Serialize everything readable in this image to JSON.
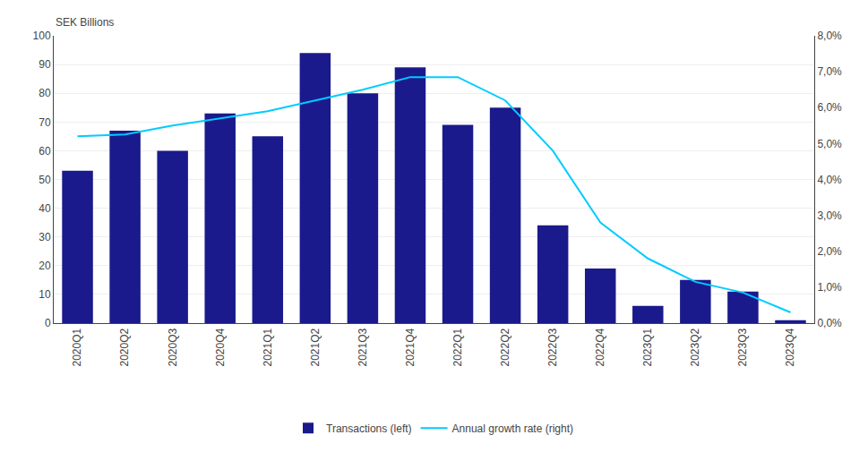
{
  "chart_data": {
    "type": "bar_line",
    "ylabel": "SEK Billions",
    "categories": [
      "2020Q1",
      "2020Q2",
      "2020Q3",
      "2020Q4",
      "2021Q1",
      "2021Q2",
      "2021Q3",
      "2021Q4",
      "2022Q1",
      "2022Q2",
      "2022Q3",
      "2022Q4",
      "2023Q1",
      "2023Q2",
      "2023Q3",
      "2023Q4"
    ],
    "series": [
      {
        "name": "Transactions (left)",
        "type": "bar",
        "color": "#1a1a8c",
        "values": [
          53,
          67,
          60,
          73,
          65,
          94,
          80,
          89,
          69,
          75,
          34,
          19,
          6,
          15,
          11,
          1
        ]
      },
      {
        "name": "Annual growth rate (right)",
        "type": "line",
        "color": "#00ccff",
        "axis": "y2",
        "values": [
          5.2,
          5.25,
          5.5,
          5.7,
          5.9,
          6.2,
          6.5,
          6.85,
          6.85,
          6.2,
          4.8,
          2.8,
          1.8,
          1.15,
          0.85,
          0.3
        ]
      }
    ],
    "ylim": [
      0,
      100
    ],
    "yticks": [
      0,
      10,
      20,
      30,
      40,
      50,
      60,
      70,
      80,
      90,
      100
    ],
    "y2lim": [
      0,
      8.0
    ],
    "y2ticks": [
      {
        "value": 0.0,
        "label": "0,0%"
      },
      {
        "value": 1.0,
        "label": "1,0%"
      },
      {
        "value": 2.0,
        "label": "2,0%"
      },
      {
        "value": 3.0,
        "label": "3,0%"
      },
      {
        "value": 4.0,
        "label": "4,0%"
      },
      {
        "value": 5.0,
        "label": "5,0%"
      },
      {
        "value": 6.0,
        "label": "6,0%"
      },
      {
        "value": 7.0,
        "label": "7,0%"
      },
      {
        "value": 8.0,
        "label": "8,0%"
      }
    ],
    "grid": true,
    "legend": "bottom"
  }
}
